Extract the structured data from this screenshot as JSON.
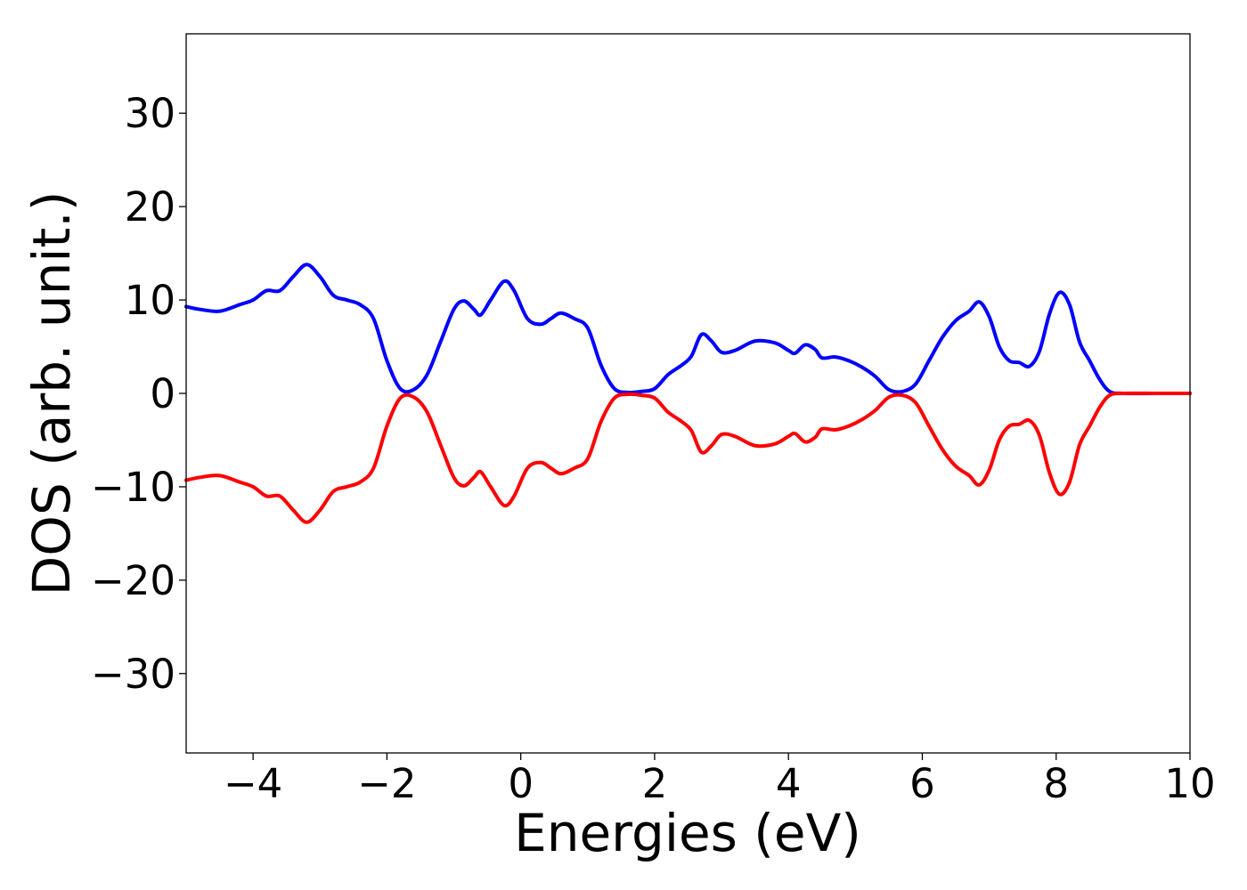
{
  "chart_data": {
    "type": "line",
    "xlabel": "Energies (eV)",
    "ylabel": "DOS (arb. unit.)",
    "xlim": [
      -5,
      10
    ],
    "ylim": [
      -38.5,
      38.5
    ],
    "x_ticks": [
      -4,
      -2,
      0,
      2,
      4,
      6,
      8,
      10
    ],
    "x_tick_labels": [
      "−4",
      "−2",
      "0",
      "2",
      "4",
      "6",
      "8",
      "10"
    ],
    "y_ticks": [
      -30,
      -20,
      -10,
      0,
      10,
      20,
      30
    ],
    "y_tick_labels": [
      "−30",
      "−20",
      "−10",
      "0",
      "10",
      "20",
      "30"
    ],
    "grid": false,
    "legend": "none",
    "x": [
      -5.0,
      -4.8,
      -4.5,
      -4.2,
      -4.0,
      -3.8,
      -3.6,
      -3.4,
      -3.2,
      -3.0,
      -2.8,
      -2.6,
      -2.4,
      -2.2,
      -2.0,
      -1.8,
      -1.6,
      -1.4,
      -1.2,
      -1.0,
      -0.85,
      -0.7,
      -0.6,
      -0.45,
      -0.25,
      -0.1,
      0.1,
      0.3,
      0.45,
      0.6,
      0.8,
      1.0,
      1.2,
      1.4,
      1.6,
      1.8,
      2.0,
      2.2,
      2.4,
      2.55,
      2.7,
      2.85,
      3.0,
      3.2,
      3.5,
      3.8,
      4.0,
      4.1,
      4.25,
      4.4,
      4.5,
      4.7,
      4.9,
      5.1,
      5.3,
      5.5,
      5.7,
      5.9,
      6.1,
      6.3,
      6.5,
      6.7,
      6.85,
      7.0,
      7.15,
      7.3,
      7.45,
      7.6,
      7.75,
      7.9,
      8.05,
      8.2,
      8.35,
      8.5,
      8.65,
      8.8,
      9.0,
      9.5,
      10.0
    ],
    "series": [
      {
        "color": "#0000ff",
        "y": [
          9.3,
          9.0,
          8.8,
          9.5,
          10.0,
          11.0,
          11.0,
          12.5,
          13.8,
          12.5,
          10.5,
          10.0,
          9.5,
          8.0,
          3.5,
          0.5,
          0.4,
          2.0,
          5.5,
          9.0,
          9.9,
          9.0,
          8.4,
          10.0,
          12.0,
          11.0,
          8.0,
          7.4,
          8.0,
          8.6,
          8.0,
          7.0,
          3.0,
          0.5,
          0.1,
          0.2,
          0.5,
          2.0,
          3.0,
          4.0,
          6.3,
          5.6,
          4.4,
          4.6,
          5.6,
          5.4,
          4.6,
          4.3,
          5.2,
          4.7,
          3.8,
          3.9,
          3.5,
          2.8,
          1.8,
          0.4,
          0.2,
          1.0,
          3.5,
          6.0,
          7.8,
          8.8,
          9.8,
          8.2,
          5.0,
          3.5,
          3.3,
          2.9,
          4.5,
          8.5,
          10.8,
          9.5,
          5.5,
          3.5,
          1.5,
          0.2,
          0.0,
          0.0,
          0.0
        ]
      },
      {
        "color": "#ff0000",
        "y": [
          -9.3,
          -9.0,
          -8.8,
          -9.5,
          -10.0,
          -11.0,
          -11.0,
          -12.5,
          -13.8,
          -12.5,
          -10.5,
          -10.0,
          -9.5,
          -8.0,
          -3.5,
          -0.5,
          -0.4,
          -2.0,
          -5.5,
          -9.0,
          -9.9,
          -9.0,
          -8.4,
          -10.0,
          -12.0,
          -11.0,
          -8.0,
          -7.4,
          -8.0,
          -8.6,
          -8.0,
          -7.0,
          -3.0,
          -0.5,
          -0.1,
          -0.2,
          -0.5,
          -2.0,
          -3.0,
          -4.0,
          -6.3,
          -5.6,
          -4.4,
          -4.6,
          -5.6,
          -5.4,
          -4.6,
          -4.3,
          -5.2,
          -4.7,
          -3.8,
          -3.9,
          -3.5,
          -2.8,
          -1.8,
          -0.4,
          -0.2,
          -1.0,
          -3.5,
          -6.0,
          -7.8,
          -8.8,
          -9.8,
          -8.2,
          -5.0,
          -3.5,
          -3.3,
          -2.9,
          -4.5,
          -8.5,
          -10.8,
          -9.5,
          -5.5,
          -3.5,
          -1.5,
          -0.2,
          0.0,
          0.0,
          0.0
        ]
      }
    ]
  }
}
